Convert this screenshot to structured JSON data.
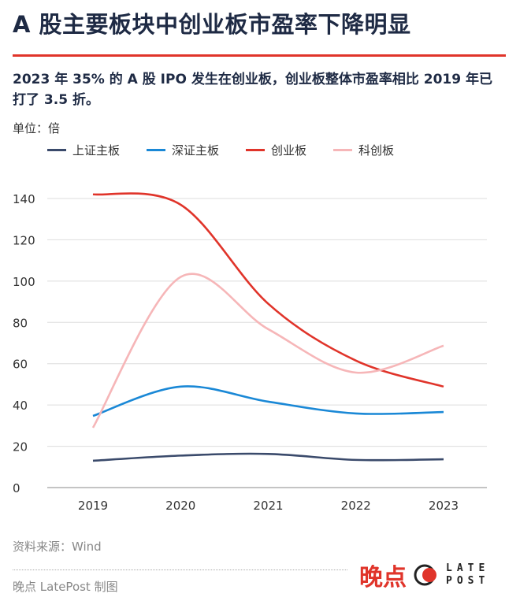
{
  "title": "A 股主要板块中创业板市盈率下降明显",
  "subtitle": "2023 年 35% 的 A 股 IPO 发生在创业板，创业板整体市盈率相比 2019 年已打了 3.5 折。",
  "unit": "单位：倍",
  "source": "资料来源：Wind",
  "credit": "晚点 LatePost 制图",
  "logo": {
    "cn": "晚点",
    "en_top": "LATE",
    "en_bottom": "POST"
  },
  "accent_color": "#e0342a",
  "chart_data": {
    "type": "line",
    "smooth": true,
    "categories": [
      "2019",
      "2020",
      "2021",
      "2022",
      "2023"
    ],
    "ylim": [
      0,
      140
    ],
    "yticks": [
      0,
      20,
      40,
      60,
      80,
      100,
      120,
      140
    ],
    "grid": true,
    "legend_position": "top-left",
    "series": [
      {
        "name": "上证主板",
        "color": "#3a4a6b",
        "values": [
          13,
          15.5,
          16.3,
          13.4,
          13.7
        ]
      },
      {
        "name": "深证主板",
        "color": "#1a88d6",
        "values": [
          34.7,
          48.9,
          41.6,
          35.9,
          36.6
        ]
      },
      {
        "name": "创业板",
        "color": "#e0342a",
        "values": [
          142,
          137,
          89,
          61.5,
          48.9
        ]
      },
      {
        "name": "科创板",
        "color": "#f6b6b8",
        "values": [
          29,
          102,
          76.7,
          55.7,
          68.7
        ]
      }
    ]
  }
}
